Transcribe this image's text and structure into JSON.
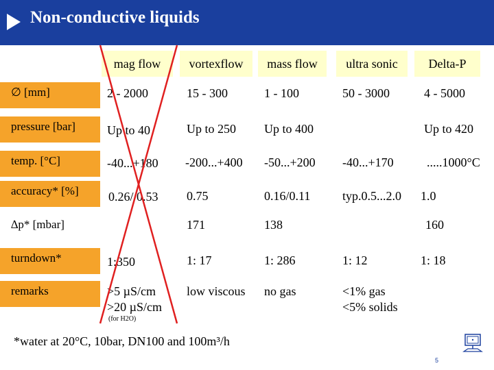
{
  "header": {
    "title": "Non-conductive liquids",
    "accent_color": "#1a3f9e"
  },
  "columns": [
    "mag flow",
    "vortexflow",
    "mass flow",
    "ultra sonic",
    "Delta-P"
  ],
  "rows": [
    {
      "label": "∅ [mm]",
      "cells": [
        "2 - 2000",
        "15 - 300",
        "1 - 100",
        "50 - 3000",
        "4 - 5000"
      ]
    },
    {
      "label": "pressure [bar]",
      "cells": [
        "Up to 40",
        "Up to 250",
        "Up to 400",
        "",
        "Up to 420"
      ]
    },
    {
      "label": "temp. [°C]",
      "cells": [
        "-40...+180",
        "-200...+400",
        "-50...+200",
        "-40...+170",
        ".....1000°C"
      ]
    },
    {
      "label": "accuracy* [%]",
      "cells": [
        "0.26/ 0.53",
        "0.75",
        "0.16/0.11",
        "typ.0.5...2.0",
        "1.0"
      ]
    },
    {
      "label": "∆p* [mbar]",
      "cells": [
        "",
        "171",
        "138",
        "",
        "160"
      ]
    },
    {
      "label": "turndown*",
      "cells": [
        "1:350",
        "1: 17",
        "1: 286",
        "1: 12",
        "1: 18"
      ]
    },
    {
      "label": "remarks",
      "cells": [
        ">5 µS/cm",
        "low viscous",
        "no gas",
        "<1% gas",
        ""
      ],
      "cells_line2": [
        ">20 µS/cm",
        "",
        "",
        "<5% solids",
        ""
      ],
      "note": "(for H2O)"
    }
  ],
  "footnote": "*water at 20°C, 10bar, DN100 and 100m³/h",
  "page_number": "5",
  "colors": {
    "row_label_bg": "#f5a32a",
    "column_header_bg": "#ffffcc",
    "cross": "#e02020"
  },
  "icons": {
    "corner": "monitor-icon"
  }
}
